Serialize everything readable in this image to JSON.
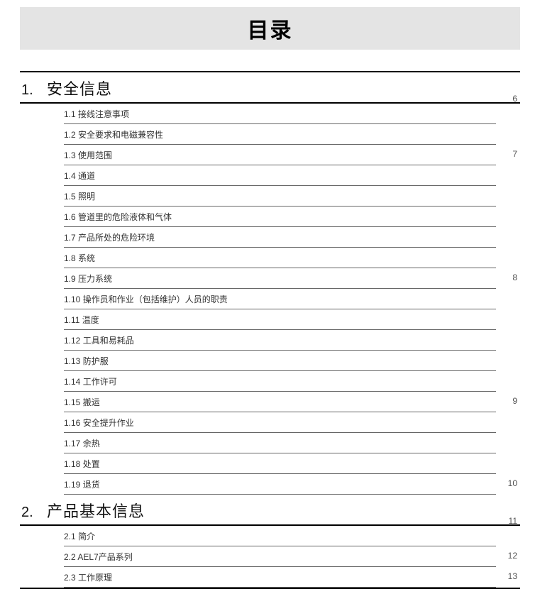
{
  "title": "目录",
  "sections": [
    {
      "num": "1.",
      "title": "安全信息",
      "page_first": "6",
      "items": [
        {
          "label": "1.1 接线注意事项",
          "page": ""
        },
        {
          "label": "1.2 安全要求和电磁兼容性",
          "page": ""
        },
        {
          "label": "1.3 使用范围",
          "page": "7"
        },
        {
          "label": "1.4 通道",
          "page": ""
        },
        {
          "label": "1.5 照明",
          "page": ""
        },
        {
          "label": "1.6 管道里的危险液体和气体",
          "page": ""
        },
        {
          "label": "1.7 产品所处的危险环境",
          "page": ""
        },
        {
          "label": "1.8 系统",
          "page": ""
        },
        {
          "label": "1.9 压力系统",
          "page": "8"
        },
        {
          "label": "1.10 操作员和作业（包括维护）人员的职责",
          "page": ""
        },
        {
          "label": "1.11 温度",
          "page": ""
        },
        {
          "label": "1.12 工具和易耗品",
          "page": ""
        },
        {
          "label": "1.13 防护服",
          "page": ""
        },
        {
          "label": "1.14 工作许可",
          "page": ""
        },
        {
          "label": "1.15 搬运",
          "page": "9"
        },
        {
          "label": "1.16 安全提升作业",
          "page": ""
        },
        {
          "label": "1.17 余热",
          "page": ""
        },
        {
          "label": "1.18 处置",
          "page": ""
        },
        {
          "label": "1.19 退货",
          "page": "10"
        }
      ]
    },
    {
      "num": "2.",
      "title": "产品基本信息",
      "page_first": "11",
      "items": [
        {
          "label": "2.1 简介",
          "page": ""
        },
        {
          "label": "2.2 AEL7产品系列",
          "page": "12"
        },
        {
          "label": "2.3 工作原理",
          "page": "13"
        }
      ]
    }
  ]
}
